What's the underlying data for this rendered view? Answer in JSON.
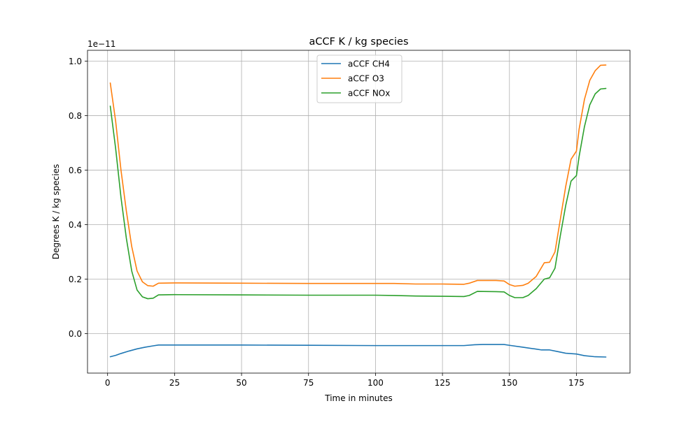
{
  "chart_data": {
    "type": "line",
    "title": "aCCF K / kg species",
    "xlabel": "Time in minutes",
    "ylabel": "Degrees K / kg species",
    "offset_label": "1e−11",
    "xlim": [
      -7.5,
      195
    ],
    "ylim": [
      -0.145,
      1.04
    ],
    "x_ticks": [
      0,
      25,
      50,
      75,
      100,
      125,
      150,
      175
    ],
    "y_ticks": [
      0.0,
      0.2,
      0.4,
      0.6,
      0.8,
      1.0
    ],
    "x_tick_labels": [
      "0",
      "25",
      "50",
      "75",
      "100",
      "125",
      "150",
      "175"
    ],
    "y_tick_labels": [
      "0.0",
      "0.2",
      "0.4",
      "0.6",
      "0.8",
      "1.0"
    ],
    "grid": true,
    "legend_position": "upper-center",
    "series": [
      {
        "name": "aCCF CH4",
        "color": "#1f77b4",
        "points": [
          [
            1,
            -0.085
          ],
          [
            3,
            -0.08
          ],
          [
            5,
            -0.073
          ],
          [
            8,
            -0.064
          ],
          [
            11,
            -0.056
          ],
          [
            14,
            -0.05
          ],
          [
            17,
            -0.045
          ],
          [
            19,
            -0.042
          ],
          [
            25,
            -0.042
          ],
          [
            50,
            -0.042
          ],
          [
            75,
            -0.043
          ],
          [
            100,
            -0.044
          ],
          [
            125,
            -0.044
          ],
          [
            133,
            -0.044
          ],
          [
            137,
            -0.041
          ],
          [
            140,
            -0.04
          ],
          [
            148,
            -0.04
          ],
          [
            150,
            -0.043
          ],
          [
            155,
            -0.05
          ],
          [
            160,
            -0.057
          ],
          [
            162,
            -0.06
          ],
          [
            165,
            -0.06
          ],
          [
            168,
            -0.066
          ],
          [
            171,
            -0.072
          ],
          [
            175,
            -0.075
          ],
          [
            178,
            -0.081
          ],
          [
            182,
            -0.085
          ],
          [
            186,
            -0.086
          ]
        ]
      },
      {
        "name": "aCCF O3",
        "color": "#ff7f0e",
        "points": [
          [
            1,
            0.92
          ],
          [
            3,
            0.78
          ],
          [
            5,
            0.6
          ],
          [
            7,
            0.45
          ],
          [
            9,
            0.32
          ],
          [
            11,
            0.23
          ],
          [
            13,
            0.19
          ],
          [
            15,
            0.176
          ],
          [
            17,
            0.174
          ],
          [
            19,
            0.185
          ],
          [
            25,
            0.186
          ],
          [
            50,
            0.185
          ],
          [
            75,
            0.184
          ],
          [
            100,
            0.184
          ],
          [
            107,
            0.184
          ],
          [
            115,
            0.182
          ],
          [
            125,
            0.182
          ],
          [
            133,
            0.181
          ],
          [
            135,
            0.185
          ],
          [
            138,
            0.195
          ],
          [
            145,
            0.195
          ],
          [
            148,
            0.193
          ],
          [
            150,
            0.18
          ],
          [
            152,
            0.174
          ],
          [
            155,
            0.177
          ],
          [
            157,
            0.185
          ],
          [
            160,
            0.21
          ],
          [
            163,
            0.26
          ],
          [
            165,
            0.262
          ],
          [
            167,
            0.3
          ],
          [
            169,
            0.42
          ],
          [
            171,
            0.54
          ],
          [
            173,
            0.64
          ],
          [
            175,
            0.67
          ],
          [
            176,
            0.75
          ],
          [
            178,
            0.86
          ],
          [
            180,
            0.93
          ],
          [
            182,
            0.965
          ],
          [
            184,
            0.985
          ],
          [
            186,
            0.986
          ]
        ]
      },
      {
        "name": "aCCF NOx",
        "color": "#2ca02c",
        "points": [
          [
            1,
            0.835
          ],
          [
            3,
            0.68
          ],
          [
            5,
            0.5
          ],
          [
            7,
            0.35
          ],
          [
            9,
            0.23
          ],
          [
            11,
            0.16
          ],
          [
            13,
            0.135
          ],
          [
            15,
            0.128
          ],
          [
            17,
            0.13
          ],
          [
            19,
            0.142
          ],
          [
            25,
            0.143
          ],
          [
            50,
            0.142
          ],
          [
            75,
            0.141
          ],
          [
            100,
            0.141
          ],
          [
            107,
            0.14
          ],
          [
            115,
            0.138
          ],
          [
            125,
            0.137
          ],
          [
            133,
            0.136
          ],
          [
            135,
            0.14
          ],
          [
            138,
            0.155
          ],
          [
            145,
            0.154
          ],
          [
            148,
            0.153
          ],
          [
            150,
            0.14
          ],
          [
            152,
            0.132
          ],
          [
            155,
            0.132
          ],
          [
            157,
            0.14
          ],
          [
            160,
            0.165
          ],
          [
            163,
            0.2
          ],
          [
            165,
            0.205
          ],
          [
            167,
            0.24
          ],
          [
            169,
            0.36
          ],
          [
            171,
            0.47
          ],
          [
            173,
            0.56
          ],
          [
            175,
            0.58
          ],
          [
            176,
            0.65
          ],
          [
            178,
            0.76
          ],
          [
            180,
            0.84
          ],
          [
            182,
            0.88
          ],
          [
            184,
            0.898
          ],
          [
            186,
            0.9
          ]
        ]
      }
    ]
  }
}
